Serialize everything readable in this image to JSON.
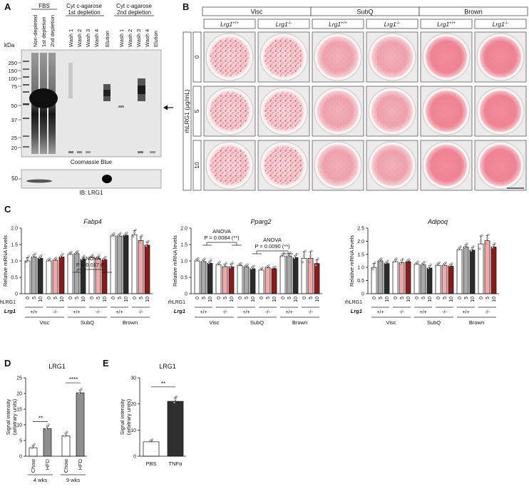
{
  "panels": {
    "A": {
      "letter": "A",
      "group_labels": [
        "FBS",
        "Cyt c-agarose 1st depletion",
        "Cyt c-agarose 2nd depletion"
      ],
      "group_label_lines": [
        [
          "FBS"
        ],
        [
          "Cyt c-agarose",
          "1st depletion"
        ],
        [
          "Cyt c-agarose",
          "2nd depletion"
        ]
      ],
      "lanes": [
        "Non-depleted",
        "1st depletion",
        "2nd depletion",
        "Wash 1",
        "Wash 2",
        "Wash 3",
        "Wash 4",
        "Elution",
        "Wash 1",
        "Wash 2",
        "Wash 3",
        "Wash 4",
        "Elution"
      ],
      "kda_label": "kDa",
      "markers": [
        "250",
        "150",
        "100",
        "75",
        "50",
        "37",
        "25",
        "20"
      ],
      "gel_caption": "Coomassie Blue",
      "blot_marker": "50",
      "blot_caption": "IB: LRG1"
    },
    "B": {
      "letter": "B",
      "tissues": [
        "Visc",
        "SubQ",
        "Brown"
      ],
      "genotypes": [
        "Lrg1+/+",
        "Lrg1-/-",
        "Lrg1+/+",
        "Lrg1-/-",
        "Lrg1+/+",
        "Lrg1-/-"
      ],
      "dose_axis_label": "rhLRG1 (μg/mL)",
      "doses": [
        "0",
        "5",
        "10"
      ]
    },
    "C": {
      "letter": "C",
      "ylabel": "Relative mRNA levels",
      "row_rhlrg1": "rhLRG1",
      "row_lrg1": "Lrg1",
      "dose_ticks": [
        "0",
        "5",
        "10"
      ],
      "genotype_ticks": [
        "+/+",
        "-/-"
      ],
      "tissues": [
        "Visc",
        "SubQ",
        "Brown"
      ],
      "annotations": {
        "fabp4": [
          "ANOVA",
          "P = 0.017 (*)"
        ],
        "pparg2_a": [
          "ANOVA",
          "P = 0.0084 (**)"
        ],
        "pparg2_b": [
          "ANOVA",
          "P = 0.0090 (**)"
        ]
      }
    },
    "D": {
      "letter": "D",
      "title": "LRG1",
      "ylabel": [
        "Signal intensity",
        "(arbitrary units)"
      ],
      "groups": [
        "4 wks",
        "9 wks"
      ],
      "sig": [
        "**",
        "****"
      ]
    },
    "E": {
      "letter": "E",
      "title": "LRG1",
      "ylabel": [
        "Signal intensity",
        "(arbitrary units)"
      ],
      "sig": [
        "**"
      ]
    }
  },
  "colors": {
    "white": "#ffffff",
    "grey": "#a8a8a8",
    "dark": "#2b2b2b",
    "pink": "#f4a9a9",
    "red": "#c0504d",
    "darkred": "#8b1a1a"
  },
  "chart_data": [
    {
      "type": "bar",
      "title": "Fabp4",
      "ylabel": "Relative mRNA levels",
      "ylim": [
        0,
        2.0
      ],
      "yticks": [
        0,
        0.5,
        1.0,
        1.5,
        2.0
      ],
      "categories": [
        "Visc +/+ 0",
        "Visc +/+ 5",
        "Visc +/+ 10",
        "Visc -/- 0",
        "Visc -/- 5",
        "Visc -/- 10",
        "SubQ +/+ 0",
        "SubQ +/+ 5",
        "SubQ +/+ 10",
        "SubQ -/- 0",
        "SubQ -/- 5",
        "SubQ -/- 10",
        "Brown +/+ 0",
        "Brown +/+ 5",
        "Brown +/+ 10",
        "Brown -/- 0",
        "Brown -/- 5",
        "Brown -/- 10"
      ],
      "values": [
        1.0,
        1.12,
        1.08,
        1.0,
        1.02,
        1.12,
        1.2,
        1.22,
        1.05,
        1.1,
        1.08,
        1.04,
        1.76,
        1.76,
        1.78,
        1.8,
        1.62,
        1.48
      ],
      "errors": [
        0.1,
        0.06,
        0.05,
        0.03,
        0.03,
        0.05,
        0.04,
        0.04,
        0.06,
        0.04,
        0.04,
        0.04,
        0.04,
        0.05,
        0.04,
        0.12,
        0.12,
        0.09
      ]
    },
    {
      "type": "bar",
      "title": "Pparg2",
      "ylabel": "Relative mRNA levels",
      "ylim": [
        0,
        2.0
      ],
      "yticks": [
        0,
        0.5,
        1.0,
        1.5,
        2.0
      ],
      "categories": [
        "Visc +/+ 0",
        "Visc +/+ 5",
        "Visc +/+ 10",
        "Visc -/- 0",
        "Visc -/- 5",
        "Visc -/- 10",
        "SubQ +/+ 0",
        "SubQ +/+ 5",
        "SubQ +/+ 10",
        "SubQ -/- 0",
        "SubQ -/- 5",
        "SubQ -/- 10",
        "Brown +/+ 0",
        "Brown +/+ 5",
        "Brown +/+ 10",
        "Brown -/- 0",
        "Brown -/- 5",
        "Brown -/- 10"
      ],
      "values": [
        1.0,
        0.98,
        0.93,
        0.88,
        0.83,
        0.82,
        0.86,
        0.82,
        0.76,
        0.72,
        0.79,
        0.76,
        1.15,
        1.15,
        1.1,
        1.08,
        1.08,
        0.92
      ],
      "errors": [
        0.04,
        0.05,
        0.06,
        0.04,
        0.07,
        0.09,
        0.03,
        0.03,
        0.05,
        0.03,
        0.03,
        0.02,
        0.06,
        0.07,
        0.07,
        0.2,
        0.2,
        0.12
      ]
    },
    {
      "type": "bar",
      "title": "Adipoq",
      "ylabel": "Relative mRNA levels",
      "ylim": [
        0,
        2.5
      ],
      "yticks": [
        0,
        0.5,
        1.0,
        1.5,
        2.0,
        2.5
      ],
      "categories": [
        "Visc +/+ 0",
        "Visc +/+ 5",
        "Visc +/+ 10",
        "Visc -/- 0",
        "Visc -/- 5",
        "Visc -/- 10",
        "SubQ +/+ 0",
        "SubQ +/+ 5",
        "SubQ +/+ 10",
        "SubQ -/- 0",
        "SubQ -/- 5",
        "SubQ -/- 10",
        "Brown +/+ 0",
        "Brown +/+ 5",
        "Brown +/+ 10",
        "Brown -/- 0",
        "Brown -/- 5",
        "Brown -/- 10"
      ],
      "values": [
        1.0,
        1.25,
        1.15,
        1.22,
        1.18,
        1.22,
        1.12,
        1.1,
        0.98,
        1.08,
        1.08,
        1.05,
        1.68,
        1.78,
        1.66,
        1.9,
        2.02,
        1.78
      ],
      "errors": [
        0.15,
        0.04,
        0.05,
        0.08,
        0.1,
        0.03,
        0.05,
        0.06,
        0.08,
        0.06,
        0.06,
        0.05,
        0.07,
        0.08,
        0.1,
        0.3,
        0.2,
        0.1
      ]
    },
    {
      "type": "bar",
      "title": "LRG1",
      "ylabel": "Signal intensity (arbitrary units)",
      "ylim": [
        0,
        25
      ],
      "yticks": [
        0,
        5,
        10,
        15,
        20,
        25
      ],
      "categories": [
        "Chow",
        "HFD",
        "Chow",
        "HFD"
      ],
      "values": [
        2.7,
        8.8,
        6.5,
        20.2
      ],
      "errors": [
        0.7,
        0.8,
        0.8,
        0.9
      ]
    },
    {
      "type": "bar",
      "title": "LRG1",
      "ylabel": "Signal intensity (arbitrary units)",
      "ylim": [
        0,
        30
      ],
      "yticks": [
        0,
        10,
        20,
        30
      ],
      "categories": [
        "PBS",
        "TNFα"
      ],
      "values": [
        5.5,
        21.0
      ],
      "errors": [
        0.4,
        1.4
      ]
    }
  ]
}
